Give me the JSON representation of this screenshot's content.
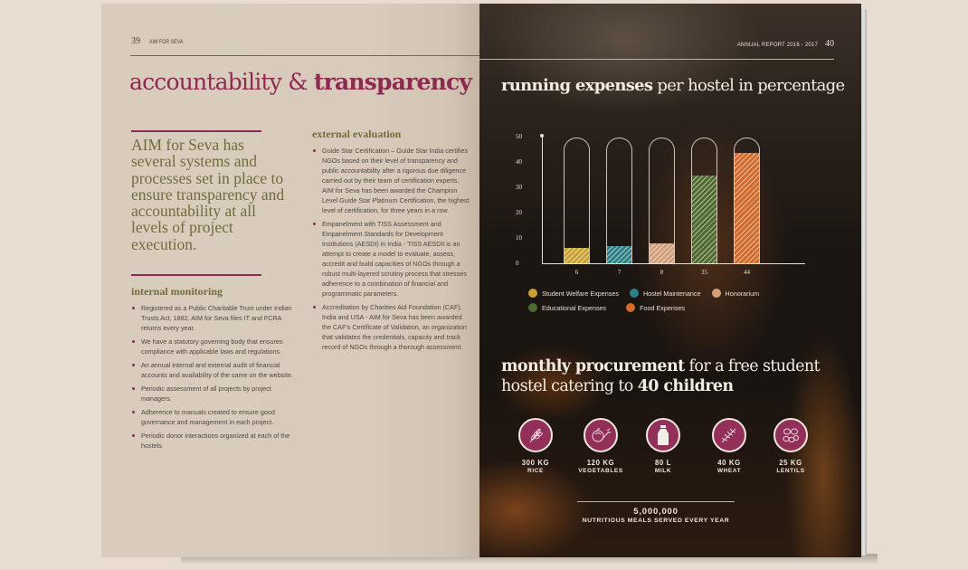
{
  "left_page": {
    "page_number": "39",
    "running_head": "AIM FOR SEVA",
    "title_light": "accountability &",
    "title_bold": "transparency",
    "intro": "AIM for Seva has several systems and processes set in place to ensure transparency and accountability at all levels of project execution.",
    "internal_monitoring": {
      "heading": "internal monitoring",
      "items": [
        "Registered as a Public Charitable Trust under Indian Trusts Act, 1882, AIM for Seva files IT and FCRA returns every year.",
        "We have a statutory governing body that ensures compliance with applicable laws and regulations.",
        "An annual internal and external audit of financial accounts and availability of the same on the website.",
        "Periodic assessment of all projects by project managers.",
        "Adherence to manuals created to ensure good governance and management in each project.",
        "Periodic donor interactions organized at each of the hostels."
      ]
    },
    "external_evaluation": {
      "heading": "external evaluation",
      "items": [
        "Guide Star Certification – Guide Star India certifies NGOs based on their level of transparency and public accountability after a rigorous due diligence carried out by their team of certification experts. AIM for Seva has been awarded the Champion Level Guide Star Platinum Certification, the highest level of certification, for three years in a row.",
        "Empanelment with TISS Assessment and Empanelment Standards for Development Institutions (AESDI) in India - TISS AESDII is an attempt to create a model to evaluate, assess, accredit and build capacities of NGOs through a robust multi-layered scrutiny process that stresses adherence to a combination of financial and programmatic parameters.",
        "Accreditation by Charities Aid Foundation (CAF), India and USA - AIM for Seva has been awarded the CAF's Certificate of Validation, an organization that validates the credentials, capacity and track record of NGOs through a thorough assessment."
      ]
    }
  },
  "right_page": {
    "running_head": "ANNUAL REPORT 2016 - 2017",
    "page_number": "40",
    "chart_title_bold": "running expenses",
    "chart_title_light": "per hostel in percentage",
    "procurement_title_bold": "monthly procurement",
    "procurement_title_light1": "for a free student hostel catering to",
    "procurement_title_bold2": "40 children",
    "procurement_items": [
      {
        "qty": "300 KG",
        "name": "RICE",
        "icon": "rice-stalk-icon"
      },
      {
        "qty": "120 KG",
        "name": "VEGETABLES",
        "icon": "vegetables-icon"
      },
      {
        "qty": "80 L",
        "name": "MILK",
        "icon": "milk-bottle-icon"
      },
      {
        "qty": "40 KG",
        "name": "WHEAT",
        "icon": "wheat-icon"
      },
      {
        "qty": "25 KG",
        "name": "LENTILS",
        "icon": "lentils-icon"
      }
    ],
    "meals_number": "5,000,000",
    "meals_caption": "NUTRITIOUS MEALS SERVED EVERY YEAR"
  },
  "chart_data": {
    "type": "bar",
    "title": "running expenses per hostel in percentage",
    "categories": [
      "Student Welfare Expenses",
      "Hostel Maintenance",
      "Honorarium",
      "Educational Expenses",
      "Food Expenses"
    ],
    "values": [
      6,
      7,
      8,
      35,
      44
    ],
    "x_tick_labels": [
      "6",
      "7",
      "8",
      "35",
      "44"
    ],
    "y_ticks": [
      "0",
      "10",
      "20",
      "30",
      "40",
      "50"
    ],
    "ylim": [
      0,
      50
    ],
    "xlabel": "",
    "ylabel": "",
    "grid": false,
    "legend_position": "bottom",
    "colors": [
      "#c9a233",
      "#2f7f86",
      "#d29f78",
      "#4e6a2e",
      "#d16a2a"
    ]
  }
}
